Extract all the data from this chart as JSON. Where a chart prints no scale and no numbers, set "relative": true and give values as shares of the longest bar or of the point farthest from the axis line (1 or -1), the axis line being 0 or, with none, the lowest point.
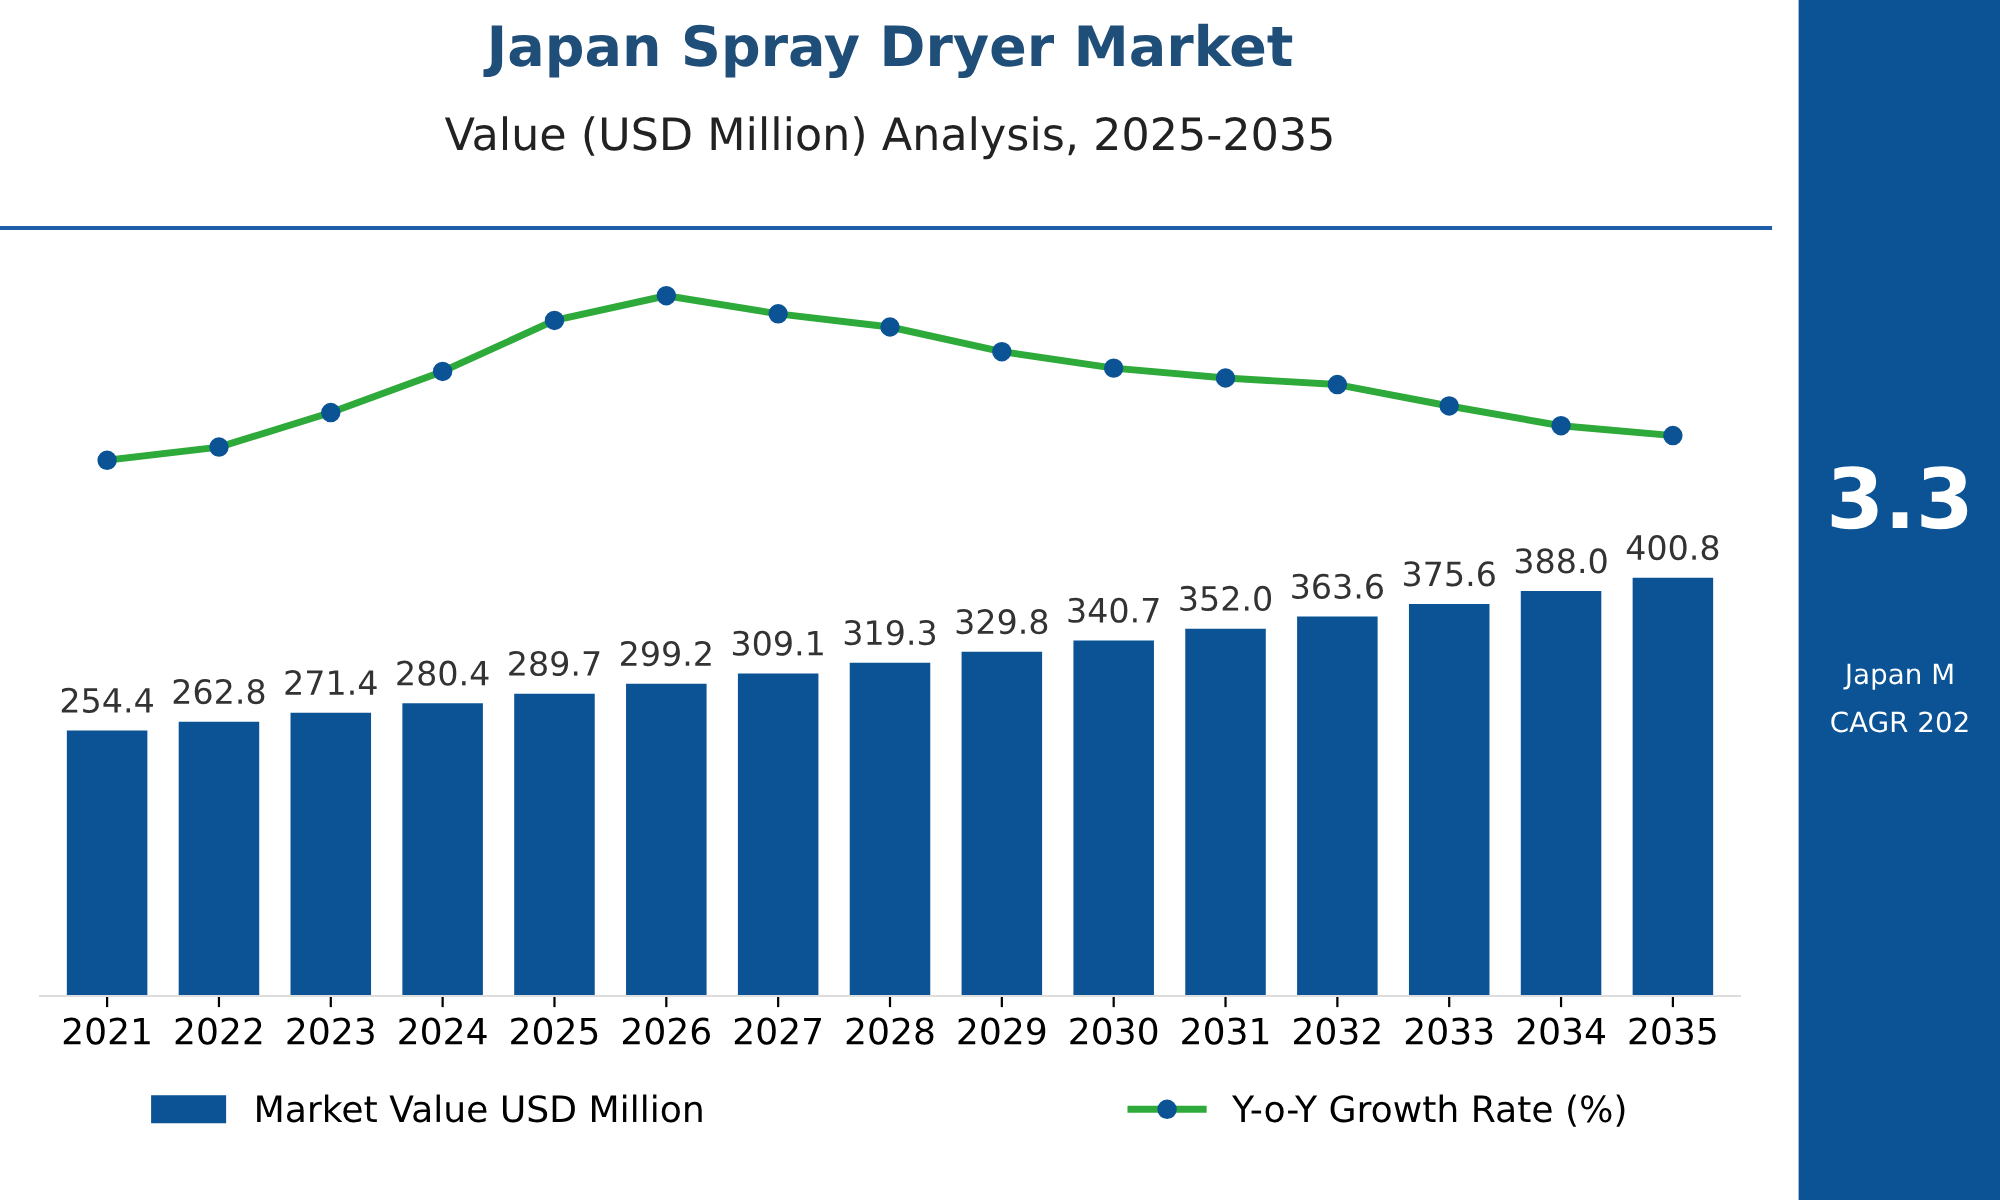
{
  "chart_data": [
    {
      "type": "line",
      "relative": true,
      "title": "Japan Spray Dryer Market",
      "subtitle": "Value (USD Million) Analysis, 2025-2035",
      "categories": [
        null,
        null,
        null,
        null,
        null,
        null,
        null,
        null,
        null,
        null,
        null,
        null,
        null,
        null,
        null
      ],
      "series": [
        {
          "name": "Y-o-Y Growth Rate (%)",
          "color": "#2eaa3a",
          "marker": "circle",
          "line_style": "solid",
          "values": [
            0,
            0.08,
            0.29,
            0.54,
            0.85,
            1,
            0.89,
            0.81,
            0.66,
            0.56,
            0.5,
            0.46,
            0.33,
            0.21,
            0.15
          ]
        }
      ],
      "legend": "bottom right"
    },
    {
      "type": "bar",
      "categories": [
        "2021",
        "2022",
        "2023",
        "2024",
        "2025",
        "2026",
        "2027",
        "2028",
        "2029",
        "2030",
        "2031",
        "2032",
        "2033",
        "2034",
        "2035"
      ],
      "series": [
        {
          "name": "Market Value USD Million",
          "type": "bar",
          "color": "#0b5394",
          "values": [
            254.4,
            262.8,
            271.4,
            280.4,
            289.7,
            299.2,
            309.1,
            319.3,
            329.8,
            340.7,
            352.0,
            363.6,
            375.6,
            388.0,
            400.8
          ],
          "value_labels": [
            "254.4",
            "262.8",
            "271.4",
            "280.4",
            "289.7",
            "299.2",
            "309.1",
            "319.3",
            "329.8",
            "340.7",
            "352.0",
            "363.6",
            "375.6",
            "388.0",
            "400.8"
          ]
        }
      ],
      "legend": "bottom left",
      "annotations": [
        "3.3",
        "Japan M",
        "CAGR 202"
      ]
    }
  ]
}
